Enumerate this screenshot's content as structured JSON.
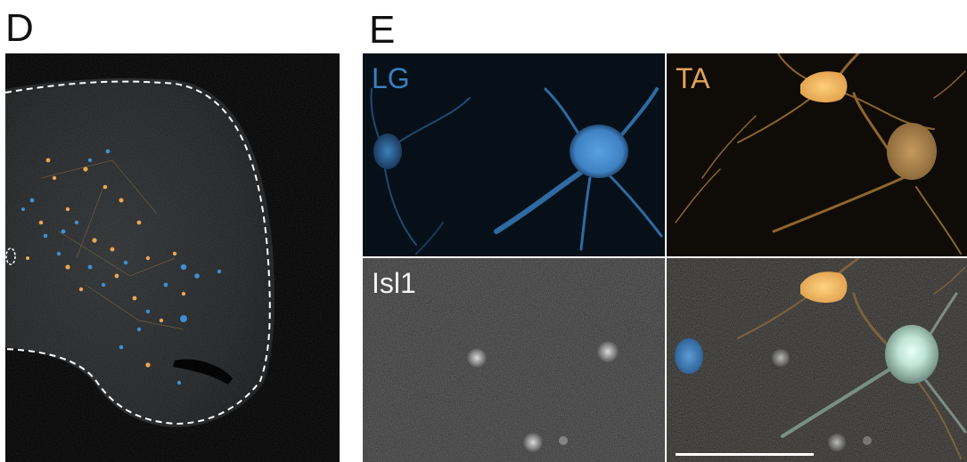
{
  "figure": {
    "panel_d": {
      "letter": "D"
    },
    "panel_e": {
      "letter": "E",
      "channels": {
        "lg": {
          "label": "LG",
          "color": "#3a7fc0"
        },
        "ta": {
          "label": "TA",
          "color": "#e0a35a"
        },
        "isl1": {
          "label": "Isl1",
          "color": "#f2f2f2"
        }
      }
    }
  },
  "colors": {
    "lg_cell": "#4a90d0",
    "ta_cell": "#f0b55e",
    "outline": "#ffffff",
    "scale_bar": "#ffffff"
  }
}
